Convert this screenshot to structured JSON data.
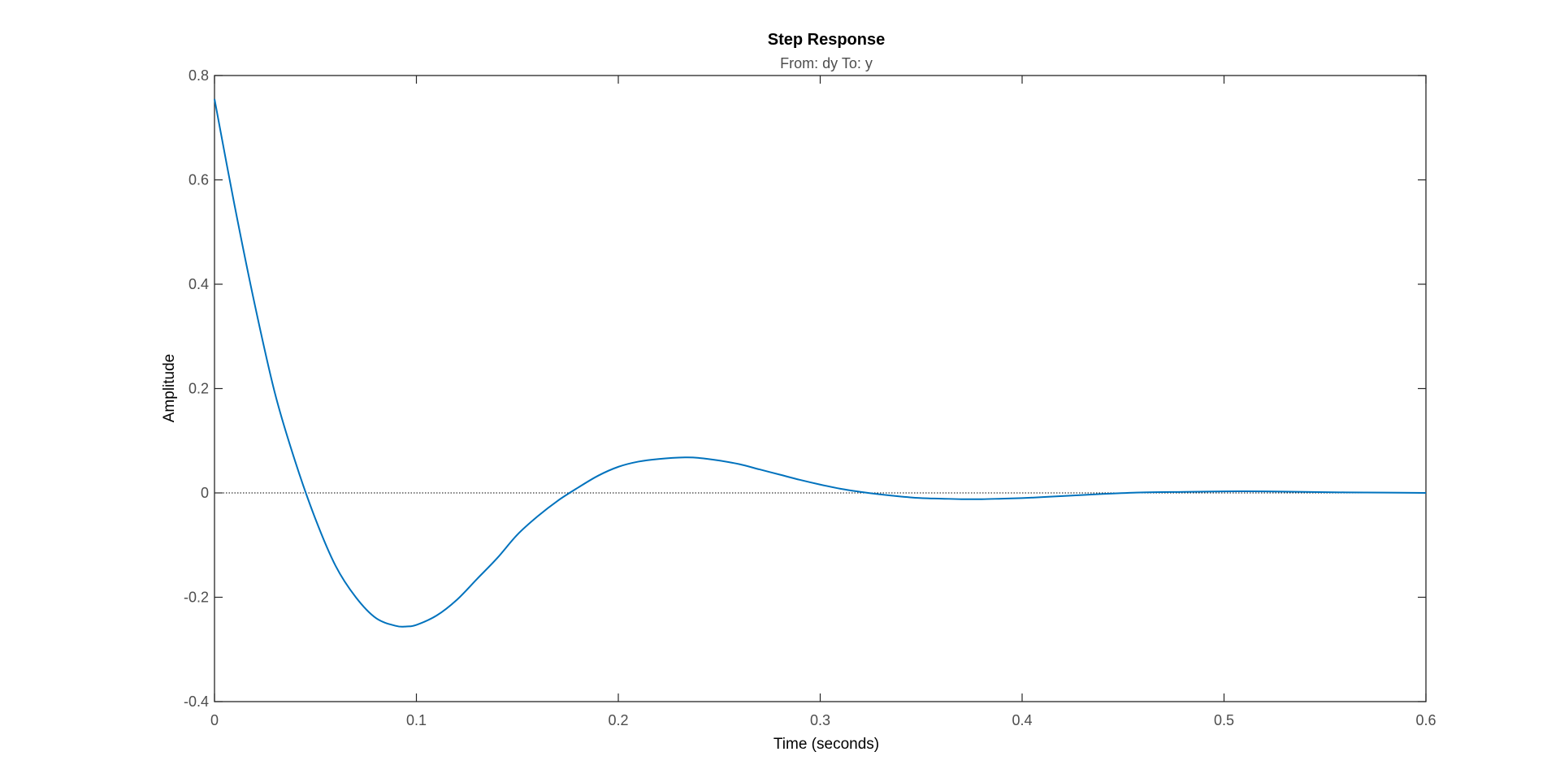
{
  "chart_data": {
    "type": "line",
    "title": "Step Response",
    "subtitle": "From: dy  To: y",
    "xlabel": "Time (seconds)",
    "ylabel": "Amplitude",
    "xlim": [
      0,
      0.6
    ],
    "ylim": [
      -0.4,
      0.8
    ],
    "xticks": [
      0,
      0.1,
      0.2,
      0.3,
      0.4,
      0.5,
      0.6
    ],
    "xtick_labels": [
      "0",
      "0.1",
      "0.2",
      "0.3",
      "0.4",
      "0.5",
      "0.6"
    ],
    "yticks": [
      -0.4,
      -0.2,
      0,
      0.2,
      0.4,
      0.6,
      0.8
    ],
    "ytick_labels": [
      "-0.4",
      "-0.2",
      "0",
      "0.2",
      "0.4",
      "0.6",
      "0.8"
    ],
    "grid": false,
    "reference_line": {
      "y": 0,
      "style": "dotted",
      "color": "#000000"
    },
    "series": [
      {
        "color": "#0072bd",
        "x": [
          0,
          0.01,
          0.02,
          0.03,
          0.04,
          0.05,
          0.06,
          0.07,
          0.08,
          0.09,
          0.095,
          0.1,
          0.11,
          0.12,
          0.13,
          0.14,
          0.15,
          0.16,
          0.17,
          0.18,
          0.19,
          0.2,
          0.21,
          0.22,
          0.233,
          0.24,
          0.25,
          0.26,
          0.27,
          0.28,
          0.29,
          0.3,
          0.31,
          0.32,
          0.33,
          0.34,
          0.35,
          0.36,
          0.37,
          0.38,
          0.39,
          0.4,
          0.42,
          0.44,
          0.46,
          0.48,
          0.5,
          0.52,
          0.54,
          0.56,
          0.58,
          0.6
        ],
        "y": [
          0.755,
          0.55,
          0.36,
          0.19,
          0.06,
          -0.05,
          -0.14,
          -0.2,
          -0.24,
          -0.255,
          -0.256,
          -0.253,
          -0.235,
          -0.205,
          -0.165,
          -0.125,
          -0.08,
          -0.045,
          -0.015,
          0.01,
          0.033,
          0.05,
          0.06,
          0.065,
          0.068,
          0.067,
          0.062,
          0.055,
          0.045,
          0.035,
          0.025,
          0.016,
          0.008,
          0.002,
          -0.003,
          -0.007,
          -0.01,
          -0.011,
          -0.012,
          -0.012,
          -0.011,
          -0.01,
          -0.006,
          -0.002,
          0.001,
          0.002,
          0.003,
          0.003,
          0.002,
          0.001,
          0.0005,
          0
        ]
      }
    ]
  }
}
